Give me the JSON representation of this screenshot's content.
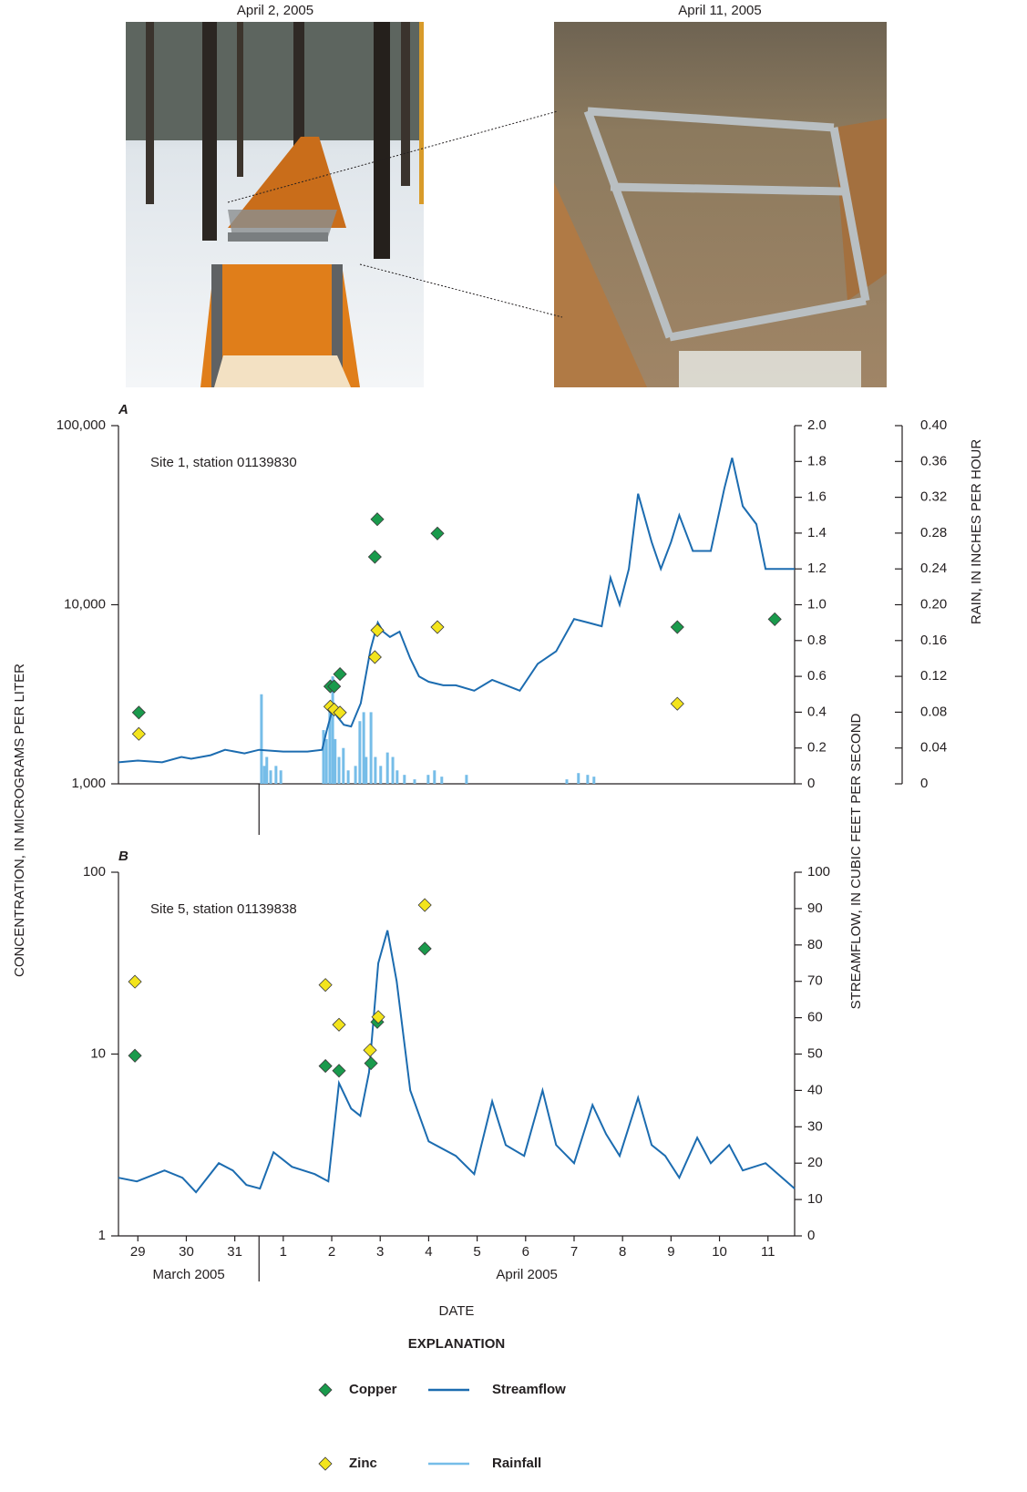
{
  "figure": {
    "photo_captions": [
      "April 2, 2005",
      "April 11, 2005"
    ],
    "y_label": "CONCENTRATION, IN MICROGRAMS PER LITER",
    "y2_label": "STREAMFLOW, IN CUBIC FEET PER SECOND",
    "x_label": "DATE",
    "legend_title": "EXPLANATION"
  },
  "chart_data": [
    {
      "type": "combo",
      "panel_label": "A",
      "annotation": "Site 1, station 01139830",
      "ylog": true,
      "ylim": [
        1000,
        100000
      ],
      "yticks": [
        {
          "value": 1000,
          "label": "1,000"
        },
        {
          "value": 10000,
          "label": "10,000"
        },
        {
          "value": 100000,
          "label": "100,000"
        }
      ],
      "y2lim": [
        0,
        2
      ],
      "y2ticks": [
        0,
        0.2,
        0.4,
        0.6,
        0.8,
        {
          "value": 1,
          "label": "1.0"
        },
        1.2,
        1.4,
        1.6,
        1.8,
        {
          "value": 2,
          "label": "2.0"
        }
      ],
      "y3lim": [
        0,
        0.4
      ],
      "y3ticks": [
        0,
        0.04,
        0.08,
        0.12,
        0.16,
        {
          "value": 0.2,
          "label": "0.20"
        },
        0.24,
        0.28,
        0.32,
        0.36,
        {
          "value": 0.4,
          "label": "0.40"
        }
      ],
      "y3_label": "RAIN, IN INCHES PER HOUR",
      "xlim": [
        29.1,
        43.05
      ],
      "x_separator": 32,
      "series": [
        {
          "name": "Copper",
          "kind": "points",
          "color": "#1a9a4c",
          "x": [
            29.52,
            33.47,
            33.55,
            33.67,
            34.39,
            34.44,
            35.68,
            40.63,
            42.64
          ],
          "values": [
            2500,
            3500,
            3500,
            4100,
            18500,
            30000,
            25000,
            7500,
            8300
          ]
        },
        {
          "name": "Zinc",
          "kind": "points",
          "color": "#f3e41c",
          "x": [
            29.52,
            33.47,
            33.55,
            33.67,
            34.39,
            34.44,
            35.68,
            40.63
          ],
          "values": [
            1900,
            2700,
            2600,
            2500,
            5100,
            7200,
            7500,
            2800
          ]
        },
        {
          "name": "Streamflow",
          "kind": "line",
          "axis": "y2",
          "color": "#1c6cb0",
          "x": [
            29.1,
            29.5,
            30.0,
            30.4,
            30.6,
            31.0,
            31.3,
            31.5,
            31.7,
            32.0,
            32.5,
            33.0,
            33.3,
            33.4,
            33.55,
            33.6,
            33.75,
            33.9,
            34.1,
            34.3,
            34.45,
            34.56,
            34.7,
            34.9,
            35.12,
            35.3,
            35.5,
            35.8,
            36.06,
            36.44,
            36.81,
            37.1,
            37.38,
            37.75,
            38.13,
            38.5,
            38.79,
            39.07,
            39.25,
            39.44,
            39.63,
            39.82,
            40.1,
            40.29,
            40.5,
            40.67,
            40.95,
            41.32,
            41.6,
            41.76,
            41.98,
            42.26,
            42.45,
            42.73,
            43.05
          ],
          "values": [
            0.12,
            0.13,
            0.12,
            0.15,
            0.14,
            0.16,
            0.19,
            0.18,
            0.17,
            0.19,
            0.18,
            0.18,
            0.19,
            0.3,
            0.45,
            0.38,
            0.33,
            0.32,
            0.45,
            0.75,
            0.9,
            0.85,
            0.82,
            0.85,
            0.7,
            0.6,
            0.57,
            0.55,
            0.55,
            0.52,
            0.58,
            0.55,
            0.52,
            0.67,
            0.74,
            0.92,
            0.9,
            0.88,
            1.15,
            1.0,
            1.2,
            1.62,
            1.35,
            1.2,
            1.35,
            1.5,
            1.3,
            1.3,
            1.65,
            1.82,
            1.55,
            1.45,
            1.2,
            1.2,
            1.2
          ]
        },
        {
          "name": "Rainfall",
          "kind": "bars",
          "axis": "y3",
          "color": "#76bde8",
          "x": [
            32.05,
            32.11,
            32.16,
            32.24,
            32.35,
            32.45,
            33.33,
            33.39,
            33.46,
            33.52,
            33.57,
            33.65,
            33.74,
            33.84,
            33.99,
            34.08,
            34.16,
            34.21,
            34.31,
            34.4,
            34.51,
            34.65,
            34.76,
            34.85,
            35.0,
            35.21,
            35.49,
            35.62,
            35.77,
            36.28,
            38.35,
            38.59,
            38.78,
            38.91
          ],
          "values": [
            0.1,
            0.02,
            0.03,
            0.015,
            0.02,
            0.015,
            0.06,
            0.05,
            0.09,
            0.12,
            0.05,
            0.03,
            0.04,
            0.015,
            0.02,
            0.07,
            0.08,
            0.03,
            0.08,
            0.03,
            0.02,
            0.035,
            0.03,
            0.015,
            0.01,
            0.005,
            0.01,
            0.015,
            0.008,
            0.01,
            0.005,
            0.012,
            0.01,
            0.008
          ]
        }
      ]
    },
    {
      "type": "combo",
      "panel_label": "B",
      "annotation": "Site 5, station 01139838",
      "ylog": true,
      "ylim": [
        1,
        100
      ],
      "yticks": [
        1,
        10,
        100
      ],
      "y2lim": [
        0,
        100
      ],
      "y2ticks": [
        0,
        10,
        20,
        30,
        40,
        50,
        60,
        70,
        80,
        90,
        100
      ],
      "xlim": [
        29.1,
        43.05
      ],
      "x_separator": 32,
      "xticks": [
        {
          "value": 29.5,
          "label": "29"
        },
        {
          "value": 30.5,
          "label": "30"
        },
        {
          "value": 31.5,
          "label": "31"
        },
        {
          "value": 32.5,
          "label": "1"
        },
        {
          "value": 33.5,
          "label": "2"
        },
        {
          "value": 34.5,
          "label": "3"
        },
        {
          "value": 35.5,
          "label": "4"
        },
        {
          "value": 36.5,
          "label": "5"
        },
        {
          "value": 37.5,
          "label": "6"
        },
        {
          "value": 38.5,
          "label": "7"
        },
        {
          "value": 39.5,
          "label": "8"
        },
        {
          "value": 40.5,
          "label": "9"
        },
        {
          "value": 41.5,
          "label": "10"
        },
        {
          "value": 42.5,
          "label": "11"
        }
      ],
      "x_groups": [
        "March 2005",
        "April 2005"
      ],
      "series": [
        {
          "kind": "points",
          "color": "#1a9a4c",
          "x": [
            29.44,
            33.37,
            33.65,
            34.31,
            34.44,
            35.42
          ],
          "values": [
            9.8,
            8.6,
            8.1,
            8.9,
            15,
            38
          ]
        },
        {
          "kind": "points",
          "color": "#f3e41c",
          "x": [
            29.44,
            33.37,
            33.65,
            34.29,
            34.46,
            35.42
          ],
          "values": [
            25,
            24,
            14.5,
            10.5,
            16,
            66
          ]
        },
        {
          "kind": "line",
          "axis": "y2",
          "color": "#1c6cb0",
          "x": [
            29.1,
            29.48,
            30.05,
            30.42,
            30.7,
            31.17,
            31.46,
            31.74,
            32.02,
            32.3,
            32.68,
            33.15,
            33.43,
            33.65,
            33.9,
            34.09,
            34.27,
            34.46,
            34.65,
            34.84,
            35.12,
            35.5,
            36.06,
            36.44,
            36.81,
            37.09,
            37.47,
            37.85,
            38.13,
            38.5,
            38.88,
            39.16,
            39.44,
            39.82,
            40.1,
            40.38,
            40.67,
            41.04,
            41.32,
            41.7,
            41.98,
            42.45,
            43.05
          ],
          "values": [
            16,
            15,
            18,
            16,
            12,
            20,
            18,
            14,
            13,
            23,
            19,
            17,
            15,
            42,
            35,
            33,
            45,
            75,
            84,
            70,
            40,
            26,
            22,
            17,
            37,
            25,
            22,
            40,
            25,
            20,
            36,
            28,
            22,
            38,
            25,
            22,
            16,
            27,
            20,
            25,
            18,
            20,
            13
          ]
        }
      ]
    }
  ]
}
